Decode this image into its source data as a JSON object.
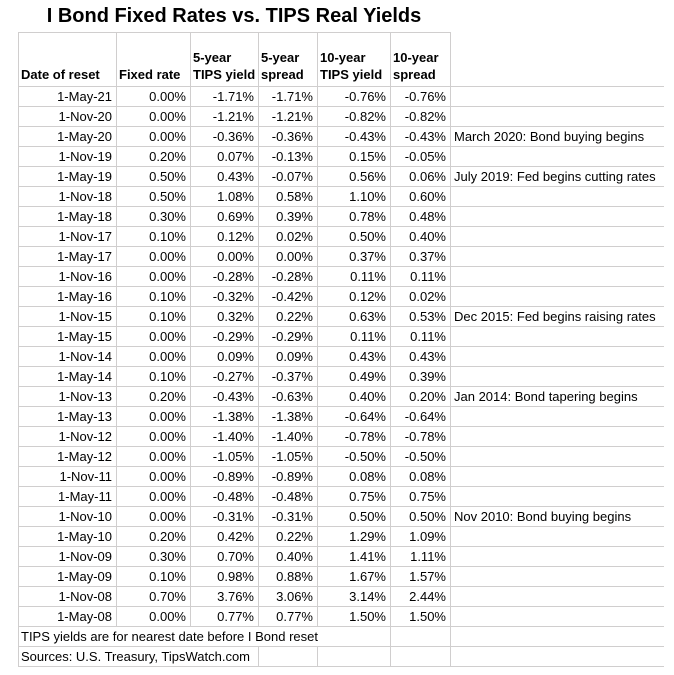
{
  "chart_data": {
    "type": "table",
    "title": "I Bond Fixed Rates vs. TIPS Real Yields",
    "columns": [
      "Date of reset",
      "Fixed rate",
      "5-year TIPS yield",
      "5-year spread",
      "10-year TIPS yield",
      "10-year spread"
    ],
    "header_lines": [
      {
        "top": "",
        "bottom": "Date of reset"
      },
      {
        "top": "",
        "bottom": "Fixed rate"
      },
      {
        "top": "5-year",
        "bottom": "TIPS yield"
      },
      {
        "top": "5-year",
        "bottom": "spread"
      },
      {
        "top": "10-year",
        "bottom": "TIPS yield"
      },
      {
        "top": "10-year",
        "bottom": "spread"
      },
      {
        "top": "",
        "bottom": ""
      }
    ],
    "rows": [
      {
        "date": "1-May-21",
        "fixed": "0.00%",
        "tips5": "-1.71%",
        "spread5": "-1.71%",
        "tips10": "-0.76%",
        "spread10": "-0.76%",
        "note": ""
      },
      {
        "date": "1-Nov-20",
        "fixed": "0.00%",
        "tips5": "-1.21%",
        "spread5": "-1.21%",
        "tips10": "-0.82%",
        "spread10": "-0.82%",
        "note": ""
      },
      {
        "date": "1-May-20",
        "fixed": "0.00%",
        "tips5": "-0.36%",
        "spread5": "-0.36%",
        "tips10": "-0.43%",
        "spread10": "-0.43%",
        "note": "March 2020: Bond buying begins"
      },
      {
        "date": "1-Nov-19",
        "fixed": "0.20%",
        "tips5": "0.07%",
        "spread5": "-0.13%",
        "tips10": "0.15%",
        "spread10": "-0.05%",
        "note": ""
      },
      {
        "date": "1-May-19",
        "fixed": "0.50%",
        "tips5": "0.43%",
        "spread5": "-0.07%",
        "tips10": "0.56%",
        "spread10": "0.06%",
        "note": "July 2019: Fed begins cutting rates"
      },
      {
        "date": "1-Nov-18",
        "fixed": "0.50%",
        "tips5": "1.08%",
        "spread5": "0.58%",
        "tips10": "1.10%",
        "spread10": "0.60%",
        "note": ""
      },
      {
        "date": "1-May-18",
        "fixed": "0.30%",
        "tips5": "0.69%",
        "spread5": "0.39%",
        "tips10": "0.78%",
        "spread10": "0.48%",
        "note": ""
      },
      {
        "date": "1-Nov-17",
        "fixed": "0.10%",
        "tips5": "0.12%",
        "spread5": "0.02%",
        "tips10": "0.50%",
        "spread10": "0.40%",
        "note": ""
      },
      {
        "date": "1-May-17",
        "fixed": "0.00%",
        "tips5": "0.00%",
        "spread5": "0.00%",
        "tips10": "0.37%",
        "spread10": "0.37%",
        "note": ""
      },
      {
        "date": "1-Nov-16",
        "fixed": "0.00%",
        "tips5": "-0.28%",
        "spread5": "-0.28%",
        "tips10": "0.11%",
        "spread10": "0.11%",
        "note": ""
      },
      {
        "date": "1-May-16",
        "fixed": "0.10%",
        "tips5": "-0.32%",
        "spread5": "-0.42%",
        "tips10": "0.12%",
        "spread10": "0.02%",
        "note": ""
      },
      {
        "date": "1-Nov-15",
        "fixed": "0.10%",
        "tips5": "0.32%",
        "spread5": "0.22%",
        "tips10": "0.63%",
        "spread10": "0.53%",
        "note": "Dec 2015: Fed begins raising rates"
      },
      {
        "date": "1-May-15",
        "fixed": "0.00%",
        "tips5": "-0.29%",
        "spread5": "-0.29%",
        "tips10": "0.11%",
        "spread10": "0.11%",
        "note": ""
      },
      {
        "date": "1-Nov-14",
        "fixed": "0.00%",
        "tips5": "0.09%",
        "spread5": "0.09%",
        "tips10": "0.43%",
        "spread10": "0.43%",
        "note": ""
      },
      {
        "date": "1-May-14",
        "fixed": "0.10%",
        "tips5": "-0.27%",
        "spread5": "-0.37%",
        "tips10": "0.49%",
        "spread10": "0.39%",
        "note": ""
      },
      {
        "date": "1-Nov-13",
        "fixed": "0.20%",
        "tips5": "-0.43%",
        "spread5": "-0.63%",
        "tips10": "0.40%",
        "spread10": "0.20%",
        "note": "Jan 2014: Bond tapering begins"
      },
      {
        "date": "1-May-13",
        "fixed": "0.00%",
        "tips5": "-1.38%",
        "spread5": "-1.38%",
        "tips10": "-0.64%",
        "spread10": "-0.64%",
        "note": ""
      },
      {
        "date": "1-Nov-12",
        "fixed": "0.00%",
        "tips5": "-1.40%",
        "spread5": "-1.40%",
        "tips10": "-0.78%",
        "spread10": "-0.78%",
        "note": ""
      },
      {
        "date": "1-May-12",
        "fixed": "0.00%",
        "tips5": "-1.05%",
        "spread5": "-1.05%",
        "tips10": "-0.50%",
        "spread10": "-0.50%",
        "note": ""
      },
      {
        "date": "1-Nov-11",
        "fixed": "0.00%",
        "tips5": "-0.89%",
        "spread5": "-0.89%",
        "tips10": "0.08%",
        "spread10": "0.08%",
        "note": ""
      },
      {
        "date": "1-May-11",
        "fixed": "0.00%",
        "tips5": "-0.48%",
        "spread5": "-0.48%",
        "tips10": "0.75%",
        "spread10": "0.75%",
        "note": ""
      },
      {
        "date": "1-Nov-10",
        "fixed": "0.00%",
        "tips5": "-0.31%",
        "spread5": "-0.31%",
        "tips10": "0.50%",
        "spread10": "0.50%",
        "note": "Nov 2010: Bond buying begins"
      },
      {
        "date": "1-May-10",
        "fixed": "0.20%",
        "tips5": "0.42%",
        "spread5": "0.22%",
        "tips10": "1.29%",
        "spread10": "1.09%",
        "note": ""
      },
      {
        "date": "1-Nov-09",
        "fixed": "0.30%",
        "tips5": "0.70%",
        "spread5": "0.40%",
        "tips10": "1.41%",
        "spread10": "1.11%",
        "note": ""
      },
      {
        "date": "1-May-09",
        "fixed": "0.10%",
        "tips5": "0.98%",
        "spread5": "0.88%",
        "tips10": "1.67%",
        "spread10": "1.57%",
        "note": ""
      },
      {
        "date": "1-Nov-08",
        "fixed": "0.70%",
        "tips5": "3.76%",
        "spread5": "3.06%",
        "tips10": "3.14%",
        "spread10": "2.44%",
        "note": ""
      },
      {
        "date": "1-May-08",
        "fixed": "0.00%",
        "tips5": "0.77%",
        "spread5": "0.77%",
        "tips10": "1.50%",
        "spread10": "1.50%",
        "note": ""
      }
    ],
    "footnote": "TIPS yields are for nearest date before I Bond reset",
    "sources": "Sources: U.S. Treasury, TipsWatch.com"
  },
  "colors": {
    "background": "#ffffff",
    "gridline": "#d0cece",
    "text": "#000000"
  }
}
